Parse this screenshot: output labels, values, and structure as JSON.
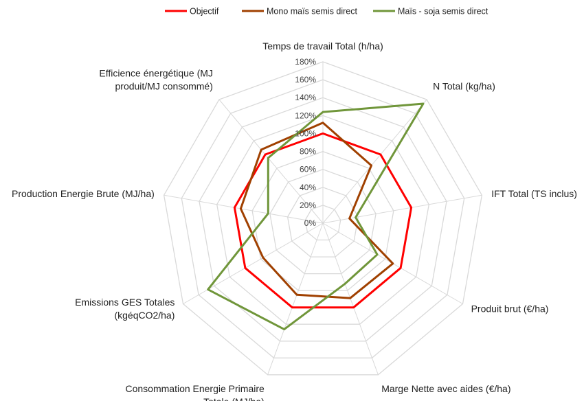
{
  "chart_data": {
    "type": "radar",
    "title": "",
    "axes": [
      "Temps de travail Total (h/ha)",
      "N Total (kg/ha)",
      "IFT Total (TS inclus)",
      "Produit brut (€/ha)",
      "Marge Nette avec aides (€/ha)",
      "Consommation Energie Primaire Totale (MJ/ha)",
      "Emissions GES Totales (kgéqCO2/ha)",
      "Production Energie Brute (MJ/ha)",
      "Efficience énergétique (MJ produit/MJ consommé)"
    ],
    "axis_label_lines": [
      [
        "Temps de travail Total (h/ha)"
      ],
      [
        "N Total (kg/ha)"
      ],
      [
        "IFT Total (TS inclus)"
      ],
      [
        "Produit brut (€/ha)"
      ],
      [
        "Marge Nette avec aides (€/ha)"
      ],
      [
        "Consommation Energie Primaire",
        "Totale (MJ/ha)"
      ],
      [
        "Emissions GES Totales",
        "(kgéqCO2/ha)"
      ],
      [
        "Production Energie Brute (MJ/ha)"
      ],
      [
        "Efficience énergétique (MJ",
        "produit/MJ consommé)"
      ]
    ],
    "range": [
      0,
      180
    ],
    "ticks": [
      "0%",
      "20%",
      "40%",
      "60%",
      "80%",
      "100%",
      "120%",
      "140%",
      "160%",
      "180%"
    ],
    "tick_values": [
      0,
      20,
      40,
      60,
      80,
      100,
      120,
      140,
      160,
      180
    ],
    "grid": true,
    "legend_position": "top",
    "series": [
      {
        "name": "Objectif",
        "color": "#ff0000",
        "values": [
          100,
          100,
          100,
          100,
          100,
          100,
          100,
          100,
          100
        ]
      },
      {
        "name": "Mono maïs semis direct",
        "color": "#a04000",
        "values": [
          112,
          84,
          30,
          90,
          89,
          85,
          77,
          93,
          107
        ]
      },
      {
        "name": "Maïs - soja semis direct",
        "color": "#70963a",
        "values": [
          124,
          174,
          37,
          70,
          72,
          126,
          148,
          62,
          95
        ]
      }
    ]
  }
}
